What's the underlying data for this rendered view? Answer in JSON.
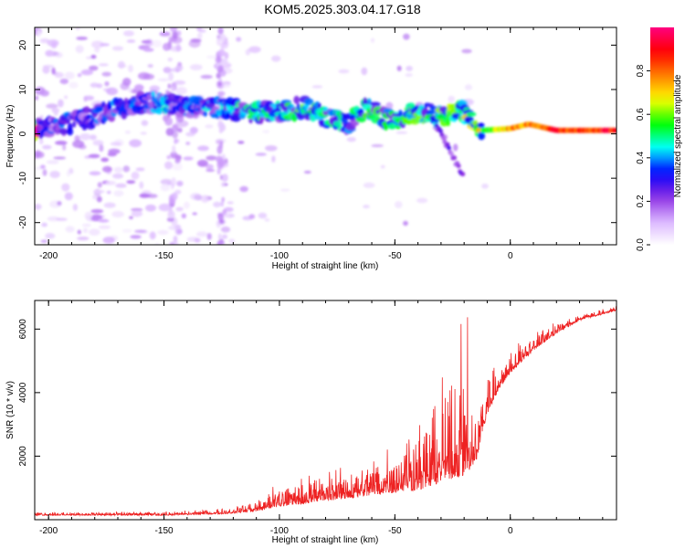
{
  "title": "KOM5.2025.303.04.17.G18",
  "chart_data": [
    {
      "type": "heatmap",
      "title": "",
      "xlabel": "Height of straight line (km)",
      "ylabel": "Frequency (Hz)",
      "xlim": [
        -206,
        46
      ],
      "ylim": [
        -25,
        24
      ],
      "xticks": [
        -200,
        -150,
        -100,
        -50,
        0
      ],
      "xtick_labels": [
        "-200",
        "-150",
        "-100",
        "-50",
        "0"
      ],
      "yticks": [
        -20,
        -10,
        0,
        10,
        20
      ],
      "ytick_labels": [
        "-20",
        "-10",
        "0",
        "10",
        "20"
      ],
      "colorbar": {
        "label": "Normalized spectral amplitude",
        "range": [
          0,
          1
        ],
        "ticks": [
          0.0,
          0.2,
          0.4,
          0.6,
          0.8
        ],
        "tick_labels": [
          "0.0",
          "0.2",
          "0.4",
          "0.6",
          "0.8"
        ],
        "colors": [
          "#ffffff",
          "#d9b3ff",
          "#8a2be2",
          "#0000ff",
          "#00ffff",
          "#00ff00",
          "#ffff00",
          "#ff7f00",
          "#ff0000",
          "#ff0080"
        ]
      },
      "ridge": {
        "description_free": true,
        "points": [
          {
            "x": -205,
            "y": 1.5,
            "a": 0.25
          },
          {
            "x": -190,
            "y": 2.5,
            "a": 0.3
          },
          {
            "x": -175,
            "y": 5,
            "a": 0.3
          },
          {
            "x": -160,
            "y": 7,
            "a": 0.3
          },
          {
            "x": -150,
            "y": 7,
            "a": 0.35
          },
          {
            "x": -140,
            "y": 6,
            "a": 0.3
          },
          {
            "x": -125,
            "y": 6,
            "a": 0.35
          },
          {
            "x": -110,
            "y": 5,
            "a": 0.4
          },
          {
            "x": -100,
            "y": 5,
            "a": 0.4
          },
          {
            "x": -90,
            "y": 6,
            "a": 0.45
          },
          {
            "x": -80,
            "y": 4,
            "a": 0.4
          },
          {
            "x": -70,
            "y": 2,
            "a": 0.35
          },
          {
            "x": -62,
            "y": 6,
            "a": 0.45
          },
          {
            "x": -52,
            "y": 3,
            "a": 0.4
          },
          {
            "x": -40,
            "y": 5,
            "a": 0.45
          },
          {
            "x": -30,
            "y": 4,
            "a": 0.45
          },
          {
            "x": -20,
            "y": 5,
            "a": 0.5
          },
          {
            "x": -12,
            "y": 0.8,
            "a": 0.55
          },
          {
            "x": 0,
            "y": 1.2,
            "a": 0.75
          },
          {
            "x": 8,
            "y": 2.2,
            "a": 0.8
          },
          {
            "x": 20,
            "y": 0.8,
            "a": 0.85
          },
          {
            "x": 46,
            "y": 0.8,
            "a": 0.9
          }
        ]
      }
    },
    {
      "type": "line",
      "title": "",
      "xlabel": "Height of straight line (km)",
      "ylabel": "SNR (10 * v/v)",
      "xlim": [
        -206,
        46
      ],
      "ylim": [
        0,
        6900
      ],
      "xticks": [
        -200,
        -150,
        -100,
        -50,
        0
      ],
      "xtick_labels": [
        "-200",
        "-150",
        "-100",
        "-50",
        "0"
      ],
      "yticks": [
        2000,
        4000,
        6000
      ],
      "ytick_labels": [
        "2000",
        "4000",
        "6000"
      ],
      "series": [
        {
          "name": "SNR",
          "color": "#ee2222",
          "envelope_x": [
            -206,
            -150,
            -125,
            -110,
            -100,
            -80,
            -60,
            -40,
            -30,
            -20,
            -15,
            -10,
            -5,
            0,
            10,
            20,
            30,
            46
          ],
          "envelope_base": [
            150,
            150,
            200,
            300,
            500,
            700,
            900,
            1200,
            1500,
            1800,
            2000,
            3500,
            4200,
            4700,
            5400,
            5900,
            6300,
            6600
          ],
          "envelope_noise": [
            100,
            100,
            150,
            300,
            600,
            800,
            1000,
            1800,
            2200,
            2800,
            1500,
            1200,
            700,
            600,
            500,
            300,
            200,
            100
          ]
        }
      ]
    }
  ]
}
